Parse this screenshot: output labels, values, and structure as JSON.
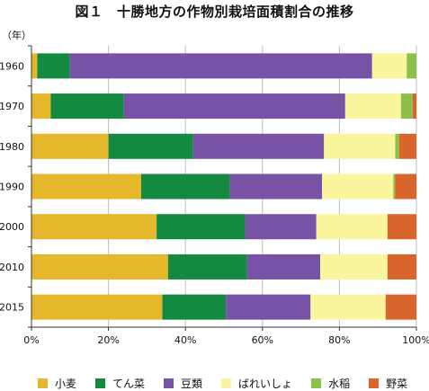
{
  "title": "図１　十勝地方の作物別栽培面積割合の推移",
  "y_unit": "（年）",
  "chart_data": {
    "type": "bar",
    "orientation": "horizontal",
    "stacked": true,
    "categories": [
      "1960",
      "1970",
      "1980",
      "1990",
      "2000",
      "2010",
      "2015"
    ],
    "series": [
      {
        "name": "小麦",
        "color": "#E5B82C",
        "values": [
          1.5,
          5,
          20,
          28.5,
          32.5,
          35.5,
          34
        ]
      },
      {
        "name": "てん菜",
        "color": "#148A40",
        "values": [
          8.5,
          19,
          22,
          23,
          23,
          20.5,
          16.5
        ]
      },
      {
        "name": "豆類",
        "color": "#7752A5",
        "values": [
          78.5,
          57.5,
          34,
          24,
          18.5,
          19,
          22
        ]
      },
      {
        "name": "ばれいしょ",
        "color": "#FAF6A0",
        "values": [
          9,
          14.5,
          18.5,
          18.5,
          18.5,
          17.5,
          19.5
        ]
      },
      {
        "name": "水稲",
        "color": "#8CC048",
        "values": [
          2.5,
          3,
          1,
          0.5,
          0,
          0,
          0
        ]
      },
      {
        "name": "野菜",
        "color": "#D8652B",
        "values": [
          0,
          1,
          4.5,
          5.5,
          7.5,
          7.5,
          8
        ]
      }
    ],
    "x_ticks": [
      "0%",
      "20%",
      "40%",
      "60%",
      "80%",
      "100%"
    ],
    "xlim": [
      0,
      100
    ],
    "grid": true,
    "legend_position": "bottom"
  }
}
